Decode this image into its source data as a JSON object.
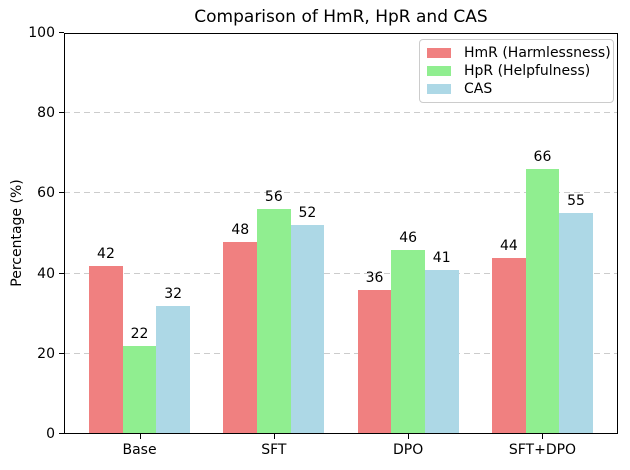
{
  "chart_data": {
    "type": "bar",
    "title": "Comparison of HmR, HpR and CAS",
    "xlabel": "",
    "ylabel": "Percentage (%)",
    "categories": [
      "Base",
      "SFT",
      "DPO",
      "SFT+DPO"
    ],
    "series": [
      {
        "name": "HmR (Harmlessness)",
        "color": "#F08080",
        "values": [
          42,
          48,
          36,
          44
        ]
      },
      {
        "name": "HpR (Helpfulness)",
        "color": "#90EE90",
        "values": [
          22,
          56,
          46,
          66
        ]
      },
      {
        "name": "CAS",
        "color": "#ADD8E6",
        "values": [
          32,
          52,
          41,
          55
        ]
      }
    ],
    "ylim": [
      0,
      100
    ],
    "yticks": [
      0,
      20,
      40,
      60,
      80,
      100
    ],
    "grid": "horizontal-dashed",
    "grid_color": "#cccccc",
    "axis_color": "#000000",
    "legend_position": "upper-right"
  }
}
